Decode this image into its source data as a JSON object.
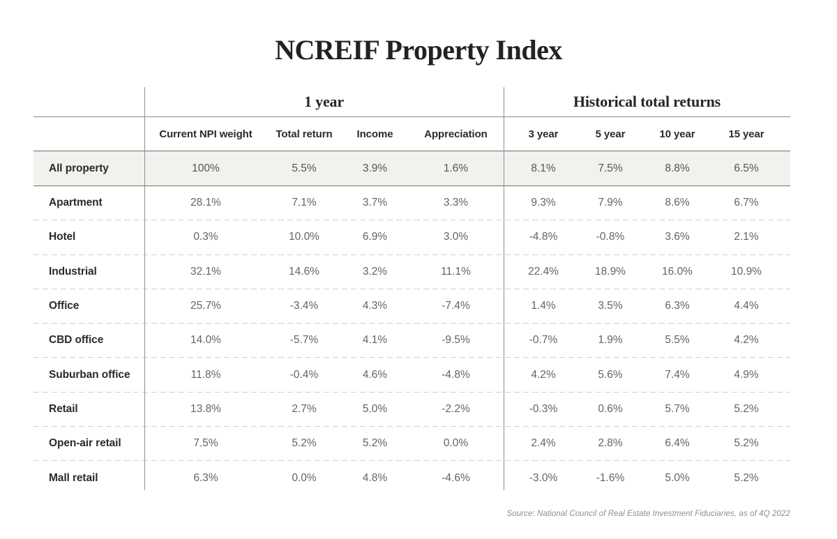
{
  "chart_data": {
    "type": "table",
    "title": "NCREIF Property Index",
    "column_groups": [
      {
        "label": "1 year",
        "span": 4
      },
      {
        "label": "Historical total returns",
        "span": 4
      }
    ],
    "columns": [
      "Current NPI weight",
      "Total return",
      "Income",
      "Appreciation",
      "3 year",
      "5 year",
      "10 year",
      "15 year"
    ],
    "rows": [
      {
        "label": "All property",
        "highlight": true,
        "values": [
          "100%",
          "5.5%",
          "3.9%",
          "1.6%",
          "8.1%",
          "7.5%",
          "8.8%",
          "6.5%"
        ]
      },
      {
        "label": "Apartment",
        "highlight": false,
        "values": [
          "28.1%",
          "7.1%",
          "3.7%",
          "3.3%",
          "9.3%",
          "7.9%",
          "8.6%",
          "6.7%"
        ]
      },
      {
        "label": "Hotel",
        "highlight": false,
        "values": [
          "0.3%",
          "10.0%",
          "6.9%",
          "3.0%",
          "-4.8%",
          "-0.8%",
          "3.6%",
          "2.1%"
        ]
      },
      {
        "label": "Industrial",
        "highlight": false,
        "values": [
          "32.1%",
          "14.6%",
          "3.2%",
          "11.1%",
          "22.4%",
          "18.9%",
          "16.0%",
          "10.9%"
        ]
      },
      {
        "label": "Office",
        "highlight": false,
        "values": [
          "25.7%",
          "-3.4%",
          "4.3%",
          "-7.4%",
          "1.4%",
          "3.5%",
          "6.3%",
          "4.4%"
        ]
      },
      {
        "label": "CBD office",
        "highlight": false,
        "values": [
          "14.0%",
          "-5.7%",
          "4.1%",
          "-9.5%",
          "-0.7%",
          "1.9%",
          "5.5%",
          "4.2%"
        ]
      },
      {
        "label": "Suburban office",
        "highlight": false,
        "values": [
          "11.8%",
          "-0.4%",
          "4.6%",
          "-4.8%",
          "4.2%",
          "5.6%",
          "7.4%",
          "4.9%"
        ]
      },
      {
        "label": "Retail",
        "highlight": false,
        "values": [
          "13.8%",
          "2.7%",
          "5.0%",
          "-2.2%",
          "-0.3%",
          "0.6%",
          "5.7%",
          "5.2%"
        ]
      },
      {
        "label": "Open-air retail",
        "highlight": false,
        "values": [
          "7.5%",
          "5.2%",
          "5.2%",
          "0.0%",
          "2.4%",
          "2.8%",
          "6.4%",
          "5.2%"
        ]
      },
      {
        "label": "Mall retail",
        "highlight": false,
        "values": [
          "6.3%",
          "0.0%",
          "4.8%",
          "-4.6%",
          "-3.0%",
          "-1.6%",
          "5.0%",
          "5.2%"
        ]
      }
    ],
    "source": "Source: National Council of Real Estate Investment Fiduciaries, as of 4Q 2022",
    "layout": {
      "grid": "off",
      "legend": "none"
    }
  },
  "colors": {
    "background": "#ffffff",
    "highlight_row_bg": "#f2f1ee",
    "solid_rule": "#6e6e6e",
    "dashed_rule": "#cfcfcf",
    "heading_text": "#222222",
    "value_text": "#646464",
    "source_text": "#8d8d8d"
  }
}
